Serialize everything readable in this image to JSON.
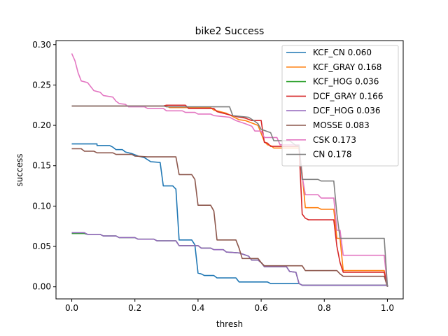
{
  "chart_data": {
    "type": "line",
    "title": "bike2 Success",
    "xlabel": "thresh",
    "ylabel": "success",
    "xlim": [
      -0.05,
      1.05
    ],
    "ylim": [
      -0.015,
      0.305
    ],
    "xticks": [
      "0.0",
      "0.2",
      "0.4",
      "0.6",
      "0.8",
      "1.0"
    ],
    "yticks": [
      "0.00",
      "0.05",
      "0.10",
      "0.15",
      "0.20",
      "0.25",
      "0.30"
    ],
    "grid": false,
    "legend_position": "top-right",
    "series": [
      {
        "name": "KCF_CN 0.060",
        "color": "#1f77b4",
        "points": [
          [
            0.0,
            0.177
          ],
          [
            0.08,
            0.177
          ],
          [
            0.08,
            0.175
          ],
          [
            0.12,
            0.175
          ],
          [
            0.13,
            0.173
          ],
          [
            0.14,
            0.17
          ],
          [
            0.16,
            0.17
          ],
          [
            0.17,
            0.167
          ],
          [
            0.19,
            0.165
          ],
          [
            0.21,
            0.162
          ],
          [
            0.23,
            0.16
          ],
          [
            0.25,
            0.155
          ],
          [
            0.28,
            0.154
          ],
          [
            0.29,
            0.125
          ],
          [
            0.32,
            0.125
          ],
          [
            0.33,
            0.121
          ],
          [
            0.34,
            0.058
          ],
          [
            0.38,
            0.058
          ],
          [
            0.39,
            0.052
          ],
          [
            0.4,
            0.017
          ],
          [
            0.41,
            0.016
          ],
          [
            0.42,
            0.014
          ],
          [
            0.45,
            0.014
          ],
          [
            0.46,
            0.011
          ],
          [
            0.52,
            0.011
          ],
          [
            0.53,
            0.006
          ],
          [
            0.62,
            0.006
          ],
          [
            0.63,
            0.004
          ],
          [
            0.72,
            0.004
          ],
          [
            0.73,
            0.002
          ],
          [
            1.0,
            0.002
          ],
          [
            1.0,
            0.0
          ]
        ]
      },
      {
        "name": "KCF_GRAY 0.168",
        "color": "#ff7f0e",
        "points": [
          [
            0.0,
            0.224
          ],
          [
            0.3,
            0.224
          ],
          [
            0.31,
            0.222
          ],
          [
            0.44,
            0.222
          ],
          [
            0.45,
            0.219
          ],
          [
            0.47,
            0.217
          ],
          [
            0.49,
            0.215
          ],
          [
            0.51,
            0.211
          ],
          [
            0.53,
            0.207
          ],
          [
            0.55,
            0.206
          ],
          [
            0.57,
            0.203
          ],
          [
            0.59,
            0.2
          ],
          [
            0.6,
            0.19
          ],
          [
            0.61,
            0.18
          ],
          [
            0.62,
            0.176
          ],
          [
            0.63,
            0.175
          ],
          [
            0.64,
            0.172
          ],
          [
            0.72,
            0.172
          ],
          [
            0.73,
            0.14
          ],
          [
            0.74,
            0.098
          ],
          [
            0.78,
            0.098
          ],
          [
            0.79,
            0.096
          ],
          [
            0.83,
            0.096
          ],
          [
            0.84,
            0.06
          ],
          [
            0.85,
            0.06
          ],
          [
            0.86,
            0.02
          ],
          [
            0.99,
            0.02
          ],
          [
            1.0,
            0.0
          ]
        ]
      },
      {
        "name": "KCF_HOG 0.036",
        "color": "#2ca02c",
        "points": [
          [
            0.0,
            0.066
          ],
          [
            0.04,
            0.066
          ],
          [
            0.05,
            0.065
          ],
          [
            0.09,
            0.065
          ],
          [
            0.1,
            0.063
          ],
          [
            0.14,
            0.063
          ],
          [
            0.15,
            0.061
          ],
          [
            0.2,
            0.061
          ],
          [
            0.21,
            0.059
          ],
          [
            0.26,
            0.059
          ],
          [
            0.27,
            0.057
          ],
          [
            0.33,
            0.057
          ],
          [
            0.34,
            0.051
          ],
          [
            0.4,
            0.051
          ],
          [
            0.41,
            0.048
          ],
          [
            0.44,
            0.048
          ],
          [
            0.45,
            0.046
          ],
          [
            0.48,
            0.046
          ],
          [
            0.49,
            0.043
          ],
          [
            0.53,
            0.042
          ],
          [
            0.56,
            0.038
          ],
          [
            0.57,
            0.033
          ],
          [
            0.59,
            0.033
          ],
          [
            0.6,
            0.03
          ],
          [
            0.61,
            0.025
          ],
          [
            0.68,
            0.025
          ],
          [
            0.69,
            0.019
          ],
          [
            0.71,
            0.018
          ],
          [
            0.72,
            0.004
          ],
          [
            0.73,
            0.002
          ],
          [
            1.0,
            0.002
          ],
          [
            1.0,
            0.0
          ]
        ]
      },
      {
        "name": "DCF_GRAY 0.166",
        "color": "#d62728",
        "points": [
          [
            0.0,
            0.224
          ],
          [
            0.29,
            0.224
          ],
          [
            0.3,
            0.225
          ],
          [
            0.36,
            0.225
          ],
          [
            0.37,
            0.221
          ],
          [
            0.45,
            0.221
          ],
          [
            0.46,
            0.217
          ],
          [
            0.5,
            0.213
          ],
          [
            0.52,
            0.211
          ],
          [
            0.55,
            0.209
          ],
          [
            0.57,
            0.206
          ],
          [
            0.6,
            0.206
          ],
          [
            0.61,
            0.179
          ],
          [
            0.62,
            0.178
          ],
          [
            0.63,
            0.174
          ],
          [
            0.72,
            0.174
          ],
          [
            0.73,
            0.09
          ],
          [
            0.74,
            0.085
          ],
          [
            0.75,
            0.083
          ],
          [
            0.83,
            0.083
          ],
          [
            0.84,
            0.05
          ],
          [
            0.85,
            0.03
          ],
          [
            0.86,
            0.018
          ],
          [
            0.99,
            0.018
          ],
          [
            1.0,
            0.0
          ]
        ]
      },
      {
        "name": "DCF_HOG 0.036",
        "color": "#9467bd",
        "points": [
          [
            0.0,
            0.067
          ],
          [
            0.04,
            0.067
          ],
          [
            0.05,
            0.065
          ],
          [
            0.09,
            0.065
          ],
          [
            0.1,
            0.063
          ],
          [
            0.14,
            0.063
          ],
          [
            0.15,
            0.061
          ],
          [
            0.2,
            0.061
          ],
          [
            0.21,
            0.059
          ],
          [
            0.26,
            0.059
          ],
          [
            0.27,
            0.057
          ],
          [
            0.33,
            0.057
          ],
          [
            0.34,
            0.051
          ],
          [
            0.4,
            0.051
          ],
          [
            0.41,
            0.048
          ],
          [
            0.44,
            0.048
          ],
          [
            0.45,
            0.046
          ],
          [
            0.48,
            0.046
          ],
          [
            0.49,
            0.043
          ],
          [
            0.53,
            0.042
          ],
          [
            0.56,
            0.038
          ],
          [
            0.57,
            0.033
          ],
          [
            0.59,
            0.033
          ],
          [
            0.6,
            0.03
          ],
          [
            0.61,
            0.025
          ],
          [
            0.68,
            0.025
          ],
          [
            0.69,
            0.019
          ],
          [
            0.71,
            0.018
          ],
          [
            0.72,
            0.004
          ],
          [
            0.73,
            0.002
          ],
          [
            1.0,
            0.002
          ],
          [
            1.0,
            0.0
          ]
        ]
      },
      {
        "name": "MOSSE 0.083",
        "color": "#8c564b",
        "points": [
          [
            0.0,
            0.171
          ],
          [
            0.03,
            0.171
          ],
          [
            0.04,
            0.168
          ],
          [
            0.07,
            0.168
          ],
          [
            0.08,
            0.166
          ],
          [
            0.13,
            0.166
          ],
          [
            0.14,
            0.164
          ],
          [
            0.19,
            0.164
          ],
          [
            0.2,
            0.162
          ],
          [
            0.24,
            0.161
          ],
          [
            0.33,
            0.161
          ],
          [
            0.34,
            0.139
          ],
          [
            0.38,
            0.139
          ],
          [
            0.39,
            0.133
          ],
          [
            0.4,
            0.101
          ],
          [
            0.44,
            0.101
          ],
          [
            0.45,
            0.094
          ],
          [
            0.46,
            0.058
          ],
          [
            0.52,
            0.058
          ],
          [
            0.53,
            0.048
          ],
          [
            0.54,
            0.035
          ],
          [
            0.59,
            0.035
          ],
          [
            0.6,
            0.03
          ],
          [
            0.61,
            0.026
          ],
          [
            0.73,
            0.026
          ],
          [
            0.74,
            0.02
          ],
          [
            0.84,
            0.02
          ],
          [
            0.85,
            0.016
          ],
          [
            0.86,
            0.013
          ],
          [
            0.99,
            0.013
          ],
          [
            1.0,
            0.0
          ]
        ]
      },
      {
        "name": "CSK 0.173",
        "color": "#e377c2",
        "points": [
          [
            0.0,
            0.289
          ],
          [
            0.01,
            0.28
          ],
          [
            0.02,
            0.265
          ],
          [
            0.03,
            0.255
          ],
          [
            0.05,
            0.253
          ],
          [
            0.06,
            0.248
          ],
          [
            0.07,
            0.243
          ],
          [
            0.09,
            0.241
          ],
          [
            0.1,
            0.237
          ],
          [
            0.13,
            0.235
          ],
          [
            0.14,
            0.23
          ],
          [
            0.15,
            0.227
          ],
          [
            0.17,
            0.226
          ],
          [
            0.18,
            0.223
          ],
          [
            0.23,
            0.223
          ],
          [
            0.24,
            0.221
          ],
          [
            0.29,
            0.221
          ],
          [
            0.3,
            0.218
          ],
          [
            0.35,
            0.218
          ],
          [
            0.36,
            0.216
          ],
          [
            0.39,
            0.216
          ],
          [
            0.4,
            0.214
          ],
          [
            0.44,
            0.214
          ],
          [
            0.45,
            0.212
          ],
          [
            0.5,
            0.21
          ],
          [
            0.52,
            0.206
          ],
          [
            0.55,
            0.202
          ],
          [
            0.57,
            0.199
          ],
          [
            0.58,
            0.193
          ],
          [
            0.6,
            0.193
          ],
          [
            0.61,
            0.185
          ],
          [
            0.65,
            0.185
          ],
          [
            0.66,
            0.176
          ],
          [
            0.72,
            0.176
          ],
          [
            0.73,
            0.137
          ],
          [
            0.74,
            0.114
          ],
          [
            0.78,
            0.114
          ],
          [
            0.79,
            0.11
          ],
          [
            0.83,
            0.11
          ],
          [
            0.84,
            0.07
          ],
          [
            0.85,
            0.07
          ],
          [
            0.86,
            0.039
          ],
          [
            0.99,
            0.039
          ],
          [
            1.0,
            0.0
          ]
        ]
      },
      {
        "name": "CN 0.178",
        "color": "#7f7f7f",
        "points": [
          [
            0.0,
            0.224
          ],
          [
            0.29,
            0.224
          ],
          [
            0.3,
            0.223
          ],
          [
            0.5,
            0.223
          ],
          [
            0.51,
            0.212
          ],
          [
            0.56,
            0.21
          ],
          [
            0.58,
            0.205
          ],
          [
            0.59,
            0.202
          ],
          [
            0.6,
            0.195
          ],
          [
            0.63,
            0.191
          ],
          [
            0.64,
            0.181
          ],
          [
            0.69,
            0.181
          ],
          [
            0.7,
            0.178
          ],
          [
            0.71,
            0.175
          ],
          [
            0.72,
            0.175
          ],
          [
            0.73,
            0.133
          ],
          [
            0.78,
            0.133
          ],
          [
            0.79,
            0.131
          ],
          [
            0.83,
            0.131
          ],
          [
            0.84,
            0.09
          ],
          [
            0.85,
            0.06
          ],
          [
            0.99,
            0.06
          ],
          [
            1.0,
            0.0
          ]
        ]
      }
    ]
  }
}
